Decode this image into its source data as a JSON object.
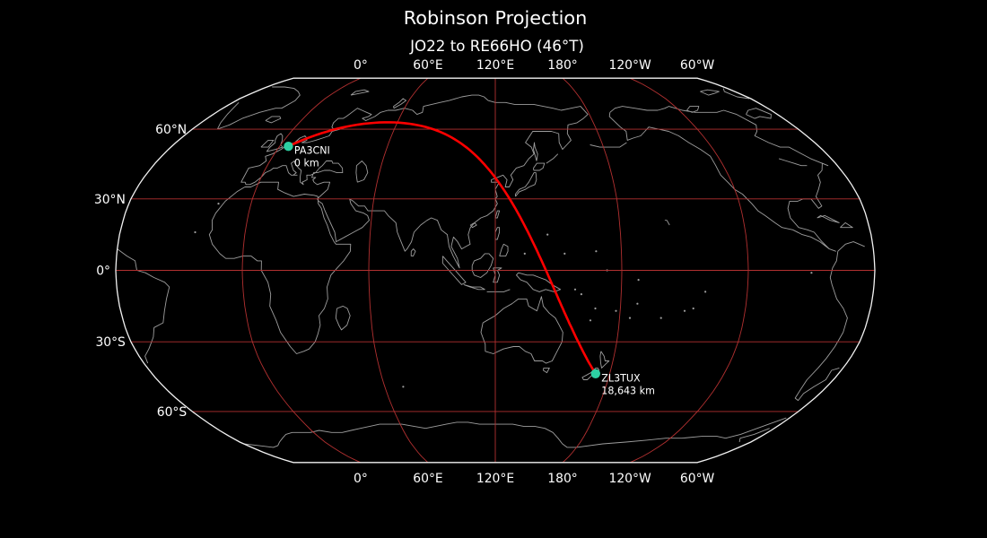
{
  "title": "Robinson Projection",
  "subtitle": "JO22 to RE66HO (46°T)",
  "colors": {
    "background": "#000000",
    "text": "#ffffff",
    "map_outline": "#f2f2f2",
    "coastline": "#9e9e9e",
    "graticule": "#b23030",
    "great_circle": "#ff0000",
    "marker": "#2dcfa2"
  },
  "projection": {
    "name": "robinson",
    "central_longitude": 120
  },
  "graticule": {
    "longitude_labels": [
      {
        "label": "0°",
        "lon": 0
      },
      {
        "label": "60°E",
        "lon": 60
      },
      {
        "label": "120°E",
        "lon": 120
      },
      {
        "label": "180°",
        "lon": 180
      },
      {
        "label": "120°W",
        "lon": -120
      },
      {
        "label": "60°W",
        "lon": -60
      }
    ],
    "latitude_labels": [
      {
        "label": "60°N",
        "lat": 60
      },
      {
        "label": "30°N",
        "lat": 30
      },
      {
        "label": "0°",
        "lat": 0
      },
      {
        "label": "30°S",
        "lat": -30
      },
      {
        "label": "60°S",
        "lat": -60
      }
    ]
  },
  "route": {
    "from": {
      "callsign": "PA3CNI",
      "grid": "JO22",
      "distance_label": "0 km",
      "lat": 52.35,
      "lon": 4.9
    },
    "to": {
      "callsign": "ZL3TUX",
      "grid": "RE66HO",
      "distance_label": "18,643 km",
      "lat": -43.45,
      "lon": 172.6
    },
    "bearing_label": "46°T"
  }
}
